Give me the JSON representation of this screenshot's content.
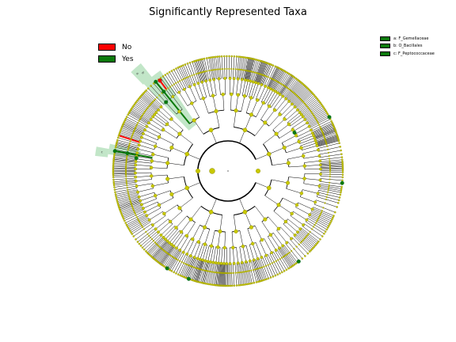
{
  "title": "Significantly Represented Taxa",
  "legend": [
    {
      "label": "No",
      "color": "#ff0000"
    },
    {
      "label": "Yes",
      "color": "#0b7a0b"
    }
  ],
  "taxa_legend": [
    {
      "label": "a: F_Gemellaceae",
      "color": "#0b7a0b"
    },
    {
      "label": "b: O_Bacillales",
      "color": "#0b7a0b"
    },
    {
      "label": "c: F_Peptococcaceae",
      "color": "#0b7a0b"
    }
  ],
  "highlight_labels": [
    "b",
    "a",
    "c"
  ],
  "colors": {
    "node": "#c8c800",
    "node_edge": "#7a7a00",
    "branch": "#000000",
    "yes": "#0b7a0b",
    "no": "#ff0000",
    "clade_shade": "#8fd19a"
  }
}
